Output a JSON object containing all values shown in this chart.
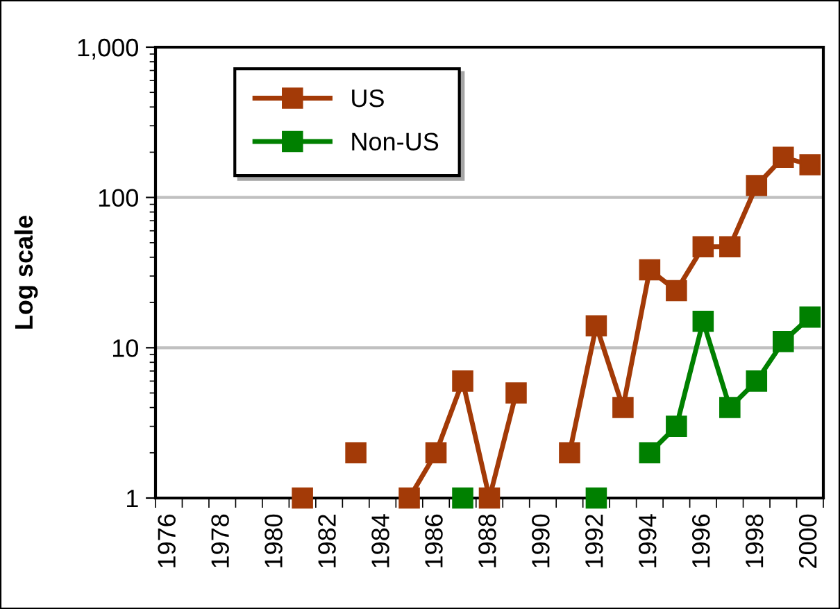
{
  "chart_data": {
    "type": "line",
    "ylabel": "Log scale",
    "log": true,
    "ylim": [
      1,
      1000
    ],
    "yticks": [
      1,
      10,
      100,
      {
        "value": 1000,
        "label": "1,000"
      }
    ],
    "grid": "y",
    "legend": "top left",
    "marker": "square",
    "line_style": "solid",
    "categories": [
      "1976",
      null,
      "1978",
      null,
      "1980",
      null,
      "1982",
      null,
      "1984",
      null,
      "1986",
      null,
      "1988",
      null,
      "1990",
      null,
      "1992",
      null,
      "1994",
      null,
      "1996",
      null,
      "1998",
      null,
      "2000"
    ],
    "series": [
      {
        "name": "US",
        "color": "#a33a07",
        "values": [
          null,
          null,
          null,
          null,
          null,
          1,
          null,
          2,
          null,
          1,
          2,
          6,
          1,
          5,
          null,
          2,
          14,
          4,
          33,
          24,
          47,
          47,
          120,
          185,
          165
        ]
      },
      {
        "name": "Non-US",
        "color": "#008000",
        "values": [
          null,
          null,
          null,
          null,
          null,
          null,
          null,
          null,
          null,
          null,
          null,
          1,
          null,
          null,
          null,
          null,
          1,
          null,
          2,
          3,
          15,
          4,
          6,
          11,
          16
        ]
      }
    ]
  }
}
